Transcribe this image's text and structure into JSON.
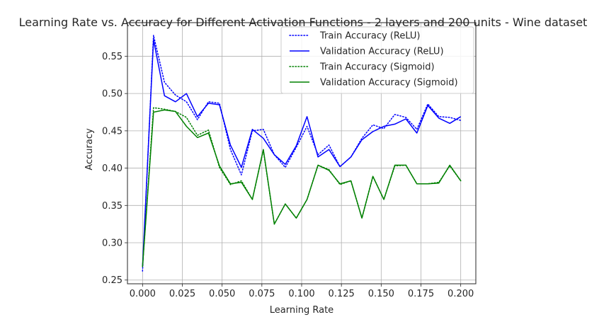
{
  "chart_data": {
    "type": "line",
    "title": "Learning Rate vs. Accuracy for Different Activation Functions - 2 layers and 200 units - Wine dataset",
    "xlabel": "Learning Rate",
    "ylabel": "Accuracy",
    "xlim": [
      -0.0095,
      0.2095
    ],
    "ylim": [
      0.245,
      0.595
    ],
    "xticks": [
      0.0,
      0.025,
      0.05,
      0.075,
      0.1,
      0.125,
      0.15,
      0.175,
      0.2
    ],
    "xtick_labels": [
      "0.000",
      "0.025",
      "0.050",
      "0.075",
      "0.100",
      "0.125",
      "0.150",
      "0.175",
      "0.200"
    ],
    "yticks": [
      0.25,
      0.3,
      0.35,
      0.4,
      0.45,
      0.5,
      0.55
    ],
    "ytick_labels": [
      "0.25",
      "0.30",
      "0.35",
      "0.40",
      "0.45",
      "0.50",
      "0.55"
    ],
    "grid": true,
    "legend_position": "top-right",
    "x": [
      0.0,
      0.0069,
      0.0138,
      0.0207,
      0.0276,
      0.0345,
      0.0414,
      0.0483,
      0.0552,
      0.0621,
      0.069,
      0.0759,
      0.0828,
      0.0897,
      0.0966,
      0.1034,
      0.1103,
      0.1172,
      0.1241,
      0.131,
      0.1379,
      0.1448,
      0.1517,
      0.1586,
      0.1655,
      0.1724,
      0.1793,
      0.1862,
      0.1931,
      0.2
    ],
    "series": [
      {
        "name": "Train Accuracy (ReLU)",
        "color": "#0000ff",
        "style": "dotted",
        "values": [
          0.262,
          0.578,
          0.515,
          0.498,
          0.489,
          0.465,
          0.489,
          0.487,
          0.425,
          0.391,
          0.45,
          0.452,
          0.418,
          0.401,
          0.428,
          0.456,
          0.418,
          0.431,
          0.402,
          0.415,
          0.44,
          0.458,
          0.453,
          0.472,
          0.468,
          0.452,
          0.486,
          0.469,
          0.468,
          0.464
        ]
      },
      {
        "name": "Validation Accuracy (ReLU)",
        "color": "#0000ff",
        "style": "solid",
        "values": [
          0.268,
          0.572,
          0.497,
          0.489,
          0.5,
          0.469,
          0.487,
          0.485,
          0.431,
          0.401,
          0.452,
          0.44,
          0.418,
          0.405,
          0.43,
          0.469,
          0.415,
          0.425,
          0.402,
          0.415,
          0.438,
          0.449,
          0.456,
          0.459,
          0.466,
          0.447,
          0.484,
          0.467,
          0.46,
          0.469
        ]
      },
      {
        "name": "Train Accuracy (Sigmoid)",
        "color": "#008000",
        "style": "dotted",
        "values": [
          0.268,
          0.481,
          0.479,
          0.476,
          0.468,
          0.444,
          0.451,
          0.401,
          0.378,
          0.383,
          0.358,
          0.424,
          0.325,
          0.352,
          0.333,
          0.358,
          0.404,
          0.398,
          0.378,
          0.383,
          0.333,
          0.389,
          0.358,
          0.403,
          0.404,
          0.379,
          0.379,
          0.381,
          0.403,
          0.383
        ]
      },
      {
        "name": "Validation Accuracy (Sigmoid)",
        "color": "#008000",
        "style": "solid",
        "values": [
          0.268,
          0.475,
          0.478,
          0.476,
          0.456,
          0.441,
          0.447,
          0.403,
          0.379,
          0.381,
          0.358,
          0.425,
          0.325,
          0.352,
          0.333,
          0.358,
          0.404,
          0.397,
          0.379,
          0.383,
          0.333,
          0.389,
          0.358,
          0.404,
          0.404,
          0.379,
          0.379,
          0.38,
          0.404,
          0.383
        ]
      }
    ]
  }
}
